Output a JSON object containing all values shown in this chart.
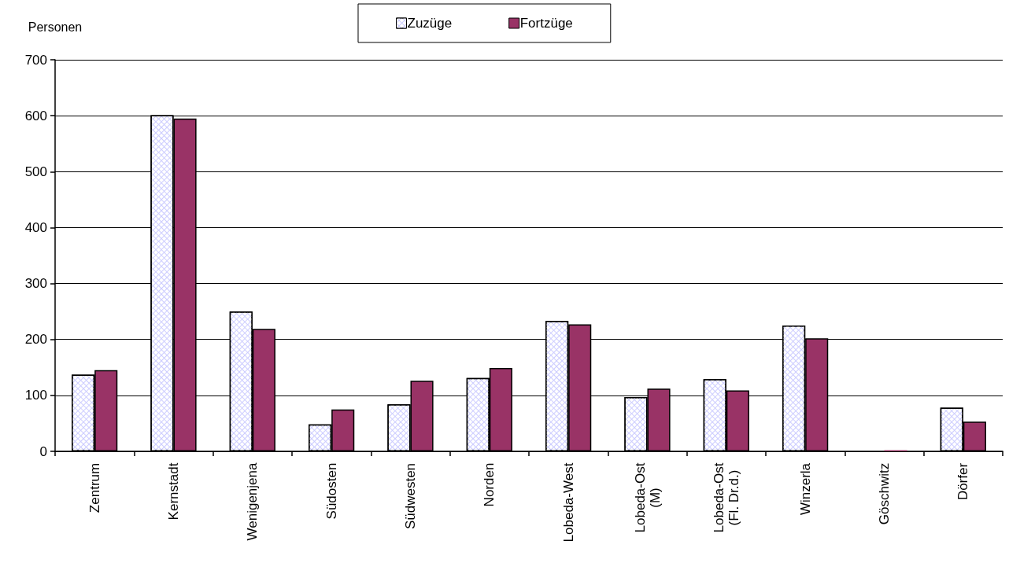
{
  "chart_data": {
    "type": "bar",
    "ylabel": "Personen",
    "categories": [
      "Zentrum",
      "Kernstadt",
      "Wenigenjena",
      "Südosten",
      "Südwesten",
      "Norden",
      "Lobeda-West",
      "Lobeda-Ost\n(M)",
      "Lobeda-Ost\n(Fl. Dr.d.)",
      "Winzerla",
      "Göschwitz",
      "Dörfer"
    ],
    "series": [
      {
        "name": "Zuzüge",
        "color": "#ccccff",
        "values": [
          137,
          601,
          250,
          48,
          84,
          131,
          233,
          97,
          129,
          225,
          0,
          78
        ]
      },
      {
        "name": "Fortzüge",
        "color": "#993366",
        "values": [
          145,
          595,
          219,
          75,
          126,
          149,
          227,
          112,
          109,
          202,
          2,
          53
        ]
      }
    ],
    "ylim": [
      0,
      700
    ],
    "yticks": [
      0,
      100,
      200,
      300,
      400,
      500,
      600,
      700
    ],
    "grid": "y",
    "legend": "top"
  }
}
